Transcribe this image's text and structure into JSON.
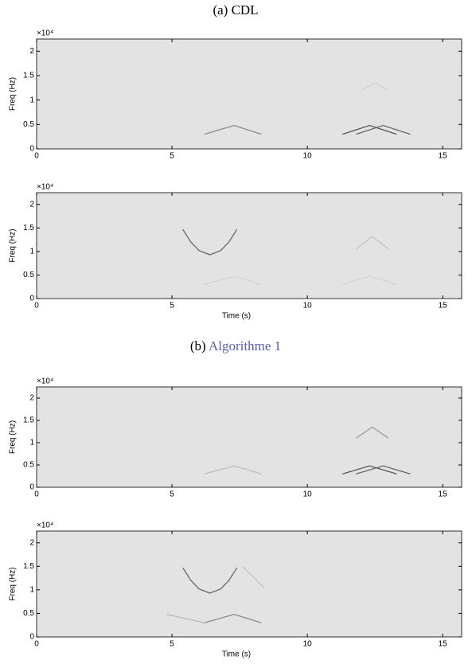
{
  "captions": [
    {
      "prefix": "(a)",
      "label": "CDL"
    },
    {
      "prefix": "(b)",
      "label": "Algorithme 1",
      "label_color": "#5a5ab4"
    }
  ],
  "chart_data": [
    {
      "type": "line",
      "ylabel": "Freq (Hz)",
      "y_exponent": "×10⁴",
      "xlim": [
        0,
        15.7
      ],
      "ylim": [
        0,
        2.25
      ],
      "xticks": [
        0,
        5,
        10,
        15
      ],
      "yticks": [
        0,
        0.5,
        1,
        1.5,
        2
      ],
      "background": "#e3e3e3",
      "series": [
        {
          "color": "#8a8a8a",
          "x": [
            6.2,
            7.3,
            8.3
          ],
          "values": [
            0.3,
            0.48,
            0.3
          ]
        },
        {
          "color": "#555555",
          "x": [
            11.3,
            12.3,
            13.3
          ],
          "values": [
            0.3,
            0.48,
            0.3
          ]
        },
        {
          "color": "#666666",
          "x": [
            11.8,
            12.8,
            13.8
          ],
          "values": [
            0.3,
            0.48,
            0.3
          ]
        },
        {
          "color": "#cfcfcf",
          "x": [
            12.0,
            12.5,
            13.0
          ],
          "values": [
            1.2,
            1.35,
            1.2
          ]
        }
      ]
    },
    {
      "type": "line",
      "ylabel": "Freq (Hz)",
      "y_exponent": "×10⁴",
      "xlabel": "Time (s)",
      "xlim": [
        0,
        15.7
      ],
      "ylim": [
        0,
        2.25
      ],
      "xticks": [
        0,
        5,
        10,
        15
      ],
      "yticks": [
        0,
        0.5,
        1,
        1.5,
        2
      ],
      "background": "#e3e3e3",
      "series": [
        {
          "color": "#6a6a6a",
          "x": [
            5.4,
            5.7,
            6.0,
            6.4,
            6.8,
            7.1,
            7.4
          ],
          "values": [
            1.47,
            1.2,
            1.02,
            0.93,
            1.02,
            1.2,
            1.47
          ]
        },
        {
          "color": "#c4c4c4",
          "x": [
            11.8,
            12.4,
            13.0
          ],
          "values": [
            1.05,
            1.32,
            1.05
          ]
        },
        {
          "color": "#d2d2d2",
          "x": [
            6.2,
            7.3,
            8.3
          ],
          "values": [
            0.3,
            0.48,
            0.3
          ]
        },
        {
          "color": "#d2d2d2",
          "x": [
            11.3,
            12.3,
            13.3
          ],
          "values": [
            0.3,
            0.48,
            0.3
          ]
        }
      ]
    },
    {
      "type": "line",
      "ylabel": "Freq (Hz)",
      "y_exponent": "×10⁴",
      "xlim": [
        0,
        15.7
      ],
      "ylim": [
        0,
        2.25
      ],
      "xticks": [
        0,
        5,
        10,
        15
      ],
      "yticks": [
        0,
        0.5,
        1,
        1.5,
        2
      ],
      "background": "#e3e3e3",
      "series": [
        {
          "color": "#bdbdbd",
          "x": [
            6.2,
            7.3,
            8.3
          ],
          "values": [
            0.3,
            0.48,
            0.3
          ]
        },
        {
          "color": "#555555",
          "x": [
            11.3,
            12.3,
            13.3
          ],
          "values": [
            0.3,
            0.48,
            0.3
          ]
        },
        {
          "color": "#666666",
          "x": [
            11.8,
            12.8,
            13.8
          ],
          "values": [
            0.3,
            0.48,
            0.3
          ]
        },
        {
          "color": "#9a9a9a",
          "x": [
            11.8,
            12.4,
            13.0
          ],
          "values": [
            1.1,
            1.35,
            1.1
          ]
        }
      ]
    },
    {
      "type": "line",
      "ylabel": "Freq (Hz)",
      "y_exponent": "×10⁴",
      "xlabel": "Time (s)",
      "xlim": [
        0,
        15.7
      ],
      "ylim": [
        0,
        2.25
      ],
      "xticks": [
        0,
        5,
        10,
        15
      ],
      "yticks": [
        0,
        0.5,
        1,
        1.5,
        2
      ],
      "background": "#e3e3e3",
      "series": [
        {
          "color": "#6a6a6a",
          "x": [
            5.4,
            5.7,
            6.0,
            6.4,
            6.8,
            7.1,
            7.4
          ],
          "values": [
            1.47,
            1.2,
            1.02,
            0.93,
            1.02,
            1.2,
            1.47
          ]
        },
        {
          "color": "#8a8a8a",
          "x": [
            6.2,
            7.3,
            8.3
          ],
          "values": [
            0.3,
            0.48,
            0.3
          ]
        },
        {
          "color": "#b8b8b8",
          "x": [
            4.8,
            6.2
          ],
          "values": [
            0.48,
            0.3
          ]
        },
        {
          "color": "#c4c4c4",
          "x": [
            7.6,
            8.4
          ],
          "values": [
            1.5,
            1.05
          ]
        }
      ]
    }
  ]
}
